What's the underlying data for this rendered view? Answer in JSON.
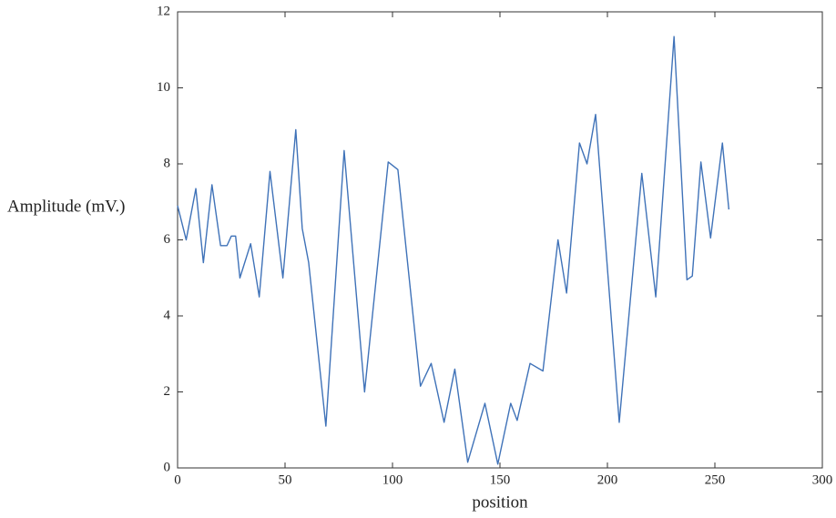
{
  "chart_data": {
    "type": "line",
    "xlabel": "position",
    "ylabel": "Amplitude (mV.)",
    "x": [
      0,
      4,
      8.5,
      12,
      16,
      20,
      23,
      25,
      27,
      29,
      34,
      38,
      43,
      49,
      55,
      58,
      61,
      69,
      77.5,
      87,
      98,
      102.5,
      113,
      118,
      124,
      129,
      135,
      143,
      149,
      155,
      158,
      164,
      170,
      177,
      181,
      187,
      190.5,
      194.5,
      205.5,
      216,
      222.5,
      231,
      237,
      239.5,
      243.5,
      248,
      253.5,
      256.5
    ],
    "values": [
      6.9,
      6.0,
      7.35,
      5.4,
      7.45,
      5.85,
      5.85,
      6.1,
      6.1,
      5.0,
      5.9,
      4.5,
      7.8,
      5.0,
      8.9,
      6.3,
      5.4,
      1.1,
      8.35,
      2.0,
      8.05,
      7.85,
      2.15,
      2.75,
      1.2,
      2.6,
      0.15,
      1.7,
      0.1,
      1.7,
      1.25,
      2.75,
      2.55,
      6.0,
      4.6,
      8.55,
      8.0,
      9.3,
      1.2,
      7.75,
      4.5,
      11.35,
      4.95,
      5.05,
      8.05,
      6.05,
      8.55,
      6.8
    ],
    "color": "#3f72b8",
    "xlim": [
      0,
      300
    ],
    "xticks": [
      0,
      50,
      100,
      150,
      200,
      250,
      300
    ],
    "ylim": [
      0,
      12
    ],
    "yticks": [
      0,
      2,
      4,
      6,
      8,
      10,
      12
    ]
  }
}
